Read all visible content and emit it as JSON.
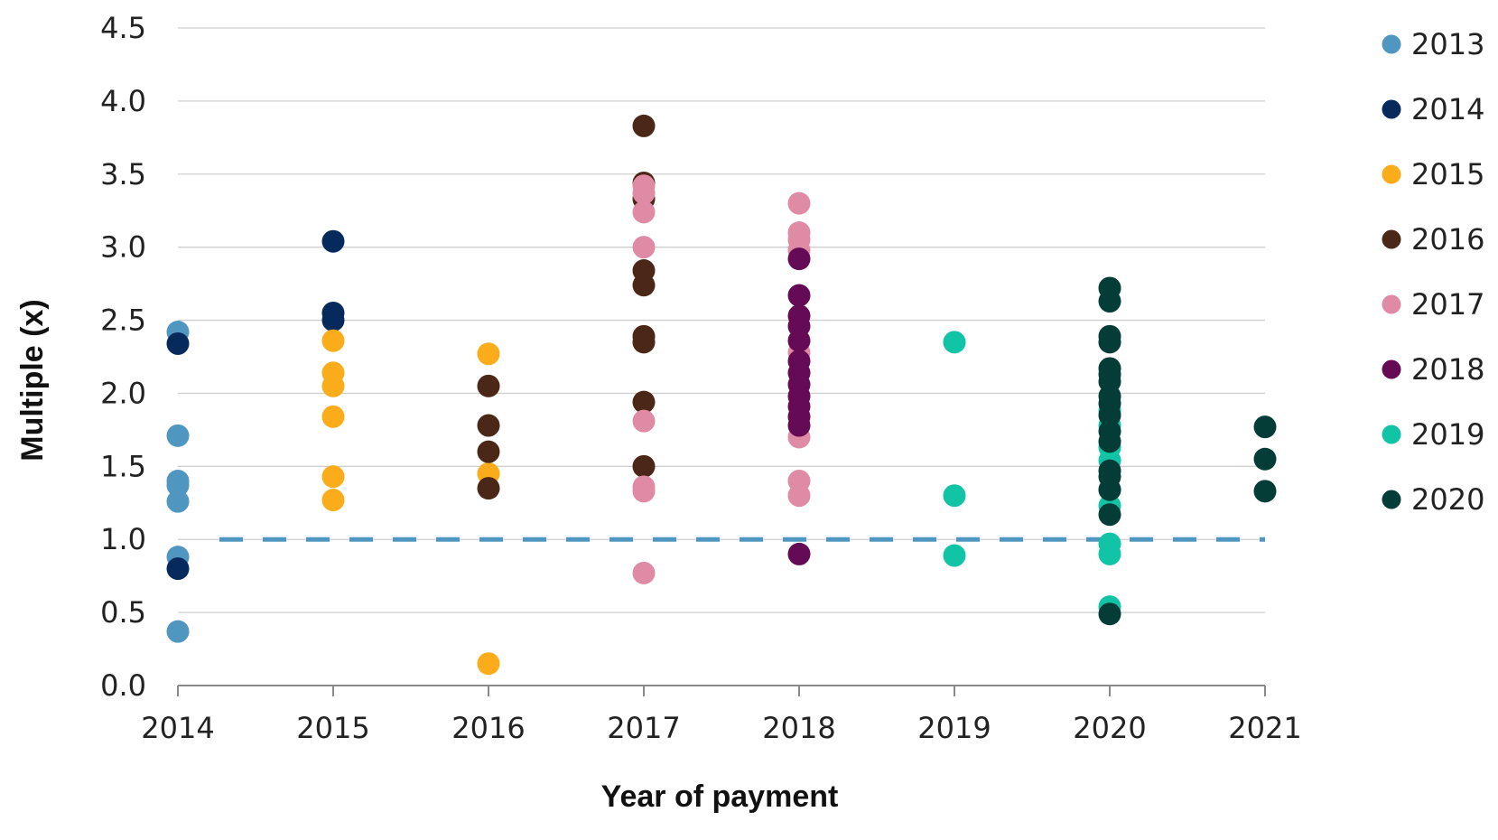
{
  "chart_data": {
    "type": "scatter",
    "title": "",
    "xlabel": "Year of payment",
    "ylabel": "Multiple (x)",
    "xlim": [
      2014,
      2021
    ],
    "ylim": [
      0,
      4.5
    ],
    "x_ticks": [
      "2014",
      "2015",
      "2016",
      "2017",
      "2018",
      "2019",
      "2020",
      "2021"
    ],
    "y_ticks": [
      "0.0",
      "0.5",
      "1.0",
      "1.5",
      "2.0",
      "2.5",
      "3.0",
      "3.5",
      "4.0",
      "4.5"
    ],
    "grid": "horizontal",
    "legend_position": "right",
    "reference_line": {
      "y": 1.0,
      "style": "dashed",
      "color": "#4f97c1"
    },
    "series": [
      {
        "name": "2013",
        "color": "#4f97c1",
        "points": [
          [
            2014,
            2.42
          ],
          [
            2014,
            1.71
          ],
          [
            2014,
            1.4
          ],
          [
            2014,
            1.37
          ],
          [
            2014,
            1.26
          ],
          [
            2014,
            0.88
          ],
          [
            2014,
            0.37
          ]
        ]
      },
      {
        "name": "2014",
        "color": "#062a5c",
        "points": [
          [
            2014,
            2.34
          ],
          [
            2014,
            0.8
          ],
          [
            2015,
            3.04
          ],
          [
            2015,
            2.55
          ],
          [
            2015,
            2.5
          ]
        ]
      },
      {
        "name": "2015",
        "color": "#fbac1b",
        "points": [
          [
            2015,
            2.36
          ],
          [
            2015,
            2.14
          ],
          [
            2015,
            2.05
          ],
          [
            2015,
            1.84
          ],
          [
            2015,
            1.43
          ],
          [
            2015,
            1.27
          ],
          [
            2016,
            2.27
          ],
          [
            2016,
            1.45
          ],
          [
            2016,
            0.15
          ]
        ]
      },
      {
        "name": "2016",
        "color": "#4a2716",
        "points": [
          [
            2016,
            2.05
          ],
          [
            2016,
            1.78
          ],
          [
            2016,
            1.6
          ],
          [
            2016,
            1.35
          ],
          [
            2017,
            3.83
          ],
          [
            2017,
            3.44
          ],
          [
            2017,
            3.33
          ],
          [
            2017,
            2.84
          ],
          [
            2017,
            2.74
          ],
          [
            2017,
            2.39
          ],
          [
            2017,
            2.35
          ],
          [
            2017,
            1.94
          ],
          [
            2017,
            1.5
          ]
        ]
      },
      {
        "name": "2017",
        "color": "#e08ba5",
        "points": [
          [
            2017,
            3.42
          ],
          [
            2017,
            3.37
          ],
          [
            2017,
            3.24
          ],
          [
            2017,
            3.0
          ],
          [
            2017,
            1.81
          ],
          [
            2017,
            1.36
          ],
          [
            2017,
            1.33
          ],
          [
            2017,
            0.77
          ],
          [
            2018,
            3.3
          ],
          [
            2018,
            3.1
          ],
          [
            2018,
            3.05
          ],
          [
            2018,
            2.98
          ],
          [
            2018,
            2.28
          ],
          [
            2018,
            1.7
          ],
          [
            2018,
            1.4
          ],
          [
            2018,
            1.3
          ]
        ]
      },
      {
        "name": "2018",
        "color": "#650a55",
        "points": [
          [
            2018,
            2.92
          ],
          [
            2018,
            2.67
          ],
          [
            2018,
            2.53
          ],
          [
            2018,
            2.46
          ],
          [
            2018,
            2.36
          ],
          [
            2018,
            2.22
          ],
          [
            2018,
            2.14
          ],
          [
            2018,
            2.06
          ],
          [
            2018,
            1.98
          ],
          [
            2018,
            1.91
          ],
          [
            2018,
            1.84
          ],
          [
            2018,
            1.78
          ],
          [
            2018,
            0.9
          ]
        ]
      },
      {
        "name": "2019",
        "color": "#12c4a6",
        "points": [
          [
            2019,
            2.35
          ],
          [
            2019,
            1.3
          ],
          [
            2019,
            0.89
          ],
          [
            2020,
            1.88
          ],
          [
            2020,
            1.78
          ],
          [
            2020,
            1.63
          ],
          [
            2020,
            1.54
          ],
          [
            2020,
            1.34
          ],
          [
            2020,
            1.23
          ],
          [
            2020,
            0.97
          ],
          [
            2020,
            0.9
          ],
          [
            2020,
            0.54
          ]
        ]
      },
      {
        "name": "2020",
        "color": "#043d37",
        "points": [
          [
            2020,
            2.72
          ],
          [
            2020,
            2.63
          ],
          [
            2020,
            2.39
          ],
          [
            2020,
            2.35
          ],
          [
            2020,
            2.17
          ],
          [
            2020,
            2.13
          ],
          [
            2020,
            2.08
          ],
          [
            2020,
            1.98
          ],
          [
            2020,
            1.93
          ],
          [
            2020,
            1.85
          ],
          [
            2020,
            1.74
          ],
          [
            2020,
            1.67
          ],
          [
            2020,
            1.47
          ],
          [
            2020,
            1.43
          ],
          [
            2020,
            1.34
          ],
          [
            2020,
            1.17
          ],
          [
            2020,
            0.49
          ],
          [
            2021,
            1.77
          ],
          [
            2021,
            1.55
          ],
          [
            2021,
            1.33
          ]
        ]
      }
    ]
  }
}
